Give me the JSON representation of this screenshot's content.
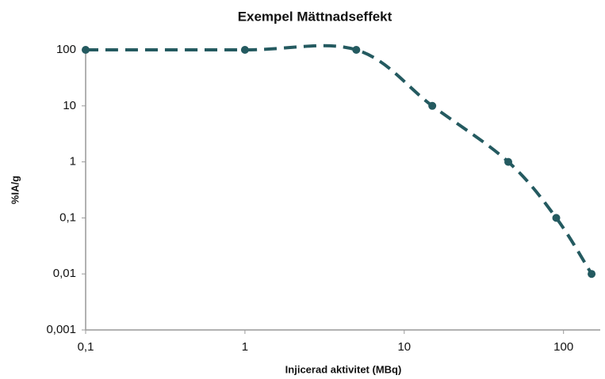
{
  "chart_data": {
    "type": "line",
    "title": "Exempel Mättnadseffekt",
    "x_label": "Injicerad aktivitet (MBq)",
    "y_label": "%IA/g",
    "x_scale": "log",
    "y_scale": "log",
    "x": [
      0.1,
      1,
      5,
      15,
      45,
      90,
      150
    ],
    "series": [
      {
        "color": "#245a60",
        "values": [
          100,
          100,
          100,
          10,
          1,
          0.1,
          0.01
        ]
      }
    ],
    "xlim": [
      0.1,
      170
    ],
    "xticks": [
      {
        "value": 0.1,
        "label": "0,1"
      },
      1,
      10,
      100
    ],
    "ylim": [
      0.001,
      100
    ],
    "yticks": [
      {
        "value": 0.001,
        "label": "0,001"
      },
      {
        "value": 0.01,
        "label": "0,01"
      },
      {
        "value": 0.1,
        "label": "0,1"
      },
      1,
      10,
      100
    ],
    "grid": false
  }
}
